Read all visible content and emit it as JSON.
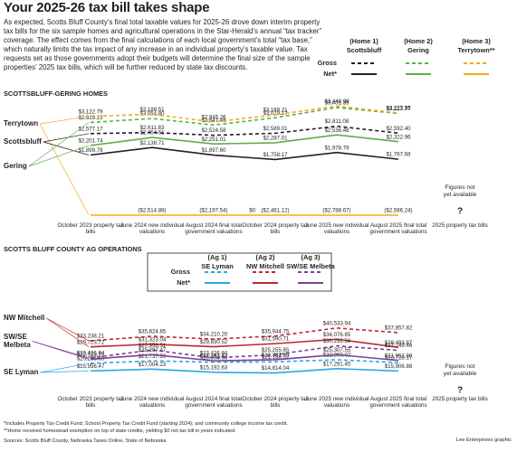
{
  "title": "Your 2025-26 tax bill takes shape",
  "intro": "As expected, Scotts Bluff County’s final total taxable values for 2025-26 drove down interim property tax bills for the six sample homes and agricultural operations in the Star-Herald’s annual “tax tracker” coverage. The effect comes from the final calculations of each local government’s total “tax base,” which naturally limits the tax impact of any increase in an individual property’s taxable value. Tax requests set as those governments adopt their budgets will determine the final size of the sample properties’ 2025 tax bills, which will be further reduced by state tax discounts.",
  "chart_data": [
    {
      "type": "line",
      "title": "SCOTTSBLUFF-GERING HOMES",
      "categories": [
        "October 2023 property tax bills",
        "June 2024 new individual valuations",
        "August 2024 final total government valuations",
        "October 2024 property tax bills",
        "June 2025 new individual valuations",
        "August 2025 final total government valuations",
        "2025 property tax bills"
      ],
      "ylim": [
        0,
        3600
      ],
      "legend": {
        "rows": [
          "Gross",
          "Net*"
        ],
        "columns": [
          {
            "number": "(Home 1)",
            "name": "Scottsbluff",
            "color": "#231f20"
          },
          {
            "number": "(Home 2)",
            "name": "Gering",
            "color": "#5fae46"
          },
          {
            "number": "(Home 3)",
            "name": "Terrytown**",
            "color": "#f4a81d"
          }
        ]
      },
      "series": [
        {
          "column": 0,
          "row": 0,
          "dashed": true,
          "color": "#231f20",
          "values": [
            2577.17,
            2611.83,
            2524.58,
            2589.01,
            2811.08,
            2592.4,
            null
          ],
          "value_labels": [
            "$2,577.17",
            "$2,611.83",
            "$2,524.58",
            "$2,589.01",
            "$2,811.08",
            "$2,592.40",
            null
          ]
        },
        {
          "column": 0,
          "row": 1,
          "dashed": false,
          "color": "#231f20",
          "values": [
            1899.78,
            2138.71,
            1897.6,
            1758.17,
            1978.79,
            1767.68,
            null
          ],
          "value_labels": [
            "$1,899.78",
            "$2,138.71",
            "$1,897.60",
            "$1,758.17",
            "$1,978.79",
            "$1,767.68",
            null
          ]
        },
        {
          "column": 1,
          "row": 0,
          "dashed": true,
          "color": "#5fae46",
          "values": [
            2929.23,
            3054.8,
            2847.48,
            3079.17,
            3401.35,
            3213.97,
            null
          ],
          "value_labels": [
            "$2,929.23",
            "$3,054.80",
            "$2,847.48",
            "$3,079.17",
            "$3,401.35",
            "$3,213.97",
            null
          ]
        },
        {
          "column": 1,
          "row": 1,
          "dashed": false,
          "color": "#5fae46",
          "values": [
            2201.74,
            2454.61,
            2251.01,
            2287.01,
            2536.48,
            2322.96,
            null
          ],
          "value_labels": [
            "$2,201.74",
            "$2,454.61",
            "$2,251.01",
            "$2,287.01",
            "$2,536.48",
            "$2,322.96",
            null
          ]
        },
        {
          "column": 2,
          "row": 0,
          "dashed": true,
          "color": "#f4a81d",
          "values": [
            3122.79,
            3188.51,
            2945.26,
            3169.21,
            3448.99,
            3227.75,
            null
          ],
          "value_labels": [
            "$3,122.79",
            "$3,188.51",
            "$2,945.26",
            "$3,169.21",
            "$3,448.99",
            "$3,227.75",
            null
          ]
        },
        {
          "column": 2,
          "row": 1,
          "dashed": false,
          "color": "#f4a81d",
          "values": [
            0,
            0,
            0,
            0,
            0,
            0,
            null
          ],
          "value_labels": [
            null,
            null,
            null,
            "$0",
            null,
            null,
            null
          ],
          "credit_labels": [
            null,
            "($2,514.88)",
            "($2,197.54)",
            "($2,461.12)",
            "($2,788.67)",
            "($2,586.24)",
            null
          ]
        }
      ],
      "line_labels": [
        {
          "lines": [
            "Terrytown"
          ],
          "series": [
            4,
            5
          ]
        },
        {
          "lines": [
            "Scottsbluff"
          ],
          "series": [
            0,
            1
          ]
        },
        {
          "lines": [
            "Gering"
          ],
          "series": [
            2,
            3
          ]
        }
      ],
      "note": "Figures not yet available",
      "mark": "?"
    },
    {
      "type": "line",
      "title": "SCOTTS BLUFF COUNTY AG OPERATIONS",
      "categories": [
        "October 2023 property tax bills",
        "June 2024 new individual valuations",
        "August 2024 final total government valuations",
        "October 2024 property tax bills",
        "June 2025 new individual valuations",
        "August 2025 final total government valuations",
        "2025 property tax bills"
      ],
      "ylim": [
        12000,
        42000
      ],
      "legend": {
        "rows": [
          "Gross",
          "Net*"
        ],
        "columns": [
          {
            "number": "(Ag 1)",
            "name": "SE Lyman",
            "color": "#27a9e1"
          },
          {
            "number": "(Ag 2)",
            "name": "NW Mitchell",
            "color": "#c1272d"
          },
          {
            "number": "(Ag 3)",
            "name": "SW/SE Melbeta",
            "color": "#7d3f98"
          }
        ]
      },
      "series": [
        {
          "column": 0,
          "row": 0,
          "dashed": true,
          "color": "#27a9e1",
          "values": [
            20295.69,
            21737.99,
            20969.03,
            21188.52,
            22360.02,
            20728.17,
            null
          ],
          "value_labels": [
            "$20,295.69",
            "$21,737.99",
            "$20,969.03",
            "$21,188.52",
            "$22,360.02",
            "$20,728.17",
            null
          ]
        },
        {
          "column": 0,
          "row": 1,
          "dashed": false,
          "color": "#27a9e1",
          "values": [
            15956.47,
            17004.23,
            15192.63,
            14814.04,
            17291.45,
            15906.88,
            null
          ],
          "value_labels": [
            "$15,956.47",
            "$17,004.23",
            "$15,192.63",
            "$14,814.04",
            "$17,291.45",
            "$15,906.88",
            null
          ]
        },
        {
          "column": 1,
          "row": 0,
          "dashed": true,
          "color": "#c1272d",
          "values": [
            33238.21,
            35824.85,
            34210.2,
            35944.75,
            40533.94,
            37857.82,
            null
          ],
          "value_labels": [
            "$33,238.21",
            "$35,824.85",
            "$34,210.20",
            "$35,944.75",
            "$40,533.94",
            "$37,857.82",
            null
          ]
        },
        {
          "column": 1,
          "row": 1,
          "dashed": false,
          "color": "#c1272d",
          "values": [
            29723.72,
            31323.04,
            29830.52,
            31590.71,
            34076.85,
            29483.87,
            null
          ],
          "value_labels": [
            "$29,723.72",
            "$31,323.04",
            "$29,830.52",
            "$31,590.71",
            "$34,076.85",
            "$29,483.87",
            null
          ]
        },
        {
          "column": 2,
          "row": 0,
          "dashed": true,
          "color": "#7d3f98",
          "values": [
            23426.84,
            27956.51,
            23426.84,
            25255.65,
            30292.56,
            27749.46,
            null
          ],
          "value_labels": [
            "$23,426.84",
            "$27,956.51",
            "$23,426.84",
            "$25,255.65",
            "$30,292.56",
            "$27,749.46",
            null
          ]
        },
        {
          "column": 2,
          "row": 1,
          "dashed": false,
          "color": "#7d3f98",
          "values": [
            22723.72,
            25287.47,
            21761.43,
            22391.69,
            25307.55,
            21952.8,
            null
          ],
          "value_labels": [
            "$22,723.72",
            "$25,287.47",
            "$21,761.43",
            "$22,391.69",
            "$25,307.55",
            "$21,952.80",
            null
          ]
        }
      ],
      "line_labels": [
        {
          "lines": [
            "NW Mitchell"
          ],
          "series": [
            2,
            3
          ]
        },
        {
          "lines": [
            "SW/SE",
            "Melbeta"
          ],
          "series": [
            4,
            5
          ]
        },
        {
          "lines": [
            "SE Lyman"
          ],
          "series": [
            0,
            1
          ]
        }
      ],
      "note": "Figures not yet available",
      "mark": "?"
    }
  ],
  "footnotes": [
    "*Includes Property Tax Credit Fund; School Property Tax Credit Fund (starting 2024); and community college income tax credit.",
    "**Home received homestead exemption on top of state credits, yielding $0 net tax bill in years indicated."
  ],
  "source": "Sources: Scotts Bluff County, Nebraska Taxes Online, State of Nebraska",
  "credit": "Lee Enterprises graphic"
}
